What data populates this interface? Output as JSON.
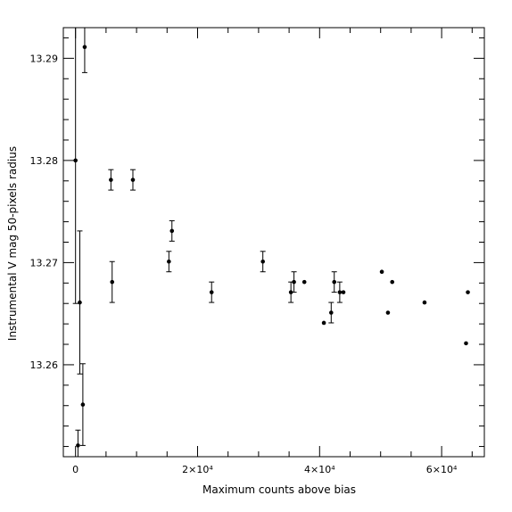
{
  "chart_data": {
    "type": "scatter",
    "title": "",
    "xlabel": "Maximum counts above bias",
    "ylabel": "Instrumental V mag 50-pixels radius",
    "xlim": [
      -2000,
      67000
    ],
    "ylim": [
      13.251,
      13.293
    ],
    "x_major_ticks": [
      0,
      20000,
      40000,
      60000
    ],
    "x_tick_labels": [
      "0",
      "2×10⁴",
      "4×10⁴",
      "6×10⁴"
    ],
    "y_major_ticks": [
      13.26,
      13.27,
      13.28,
      13.29
    ],
    "y_tick_labels": [
      "13.26",
      "13.27",
      "13.28",
      "13.29"
    ],
    "grid": false,
    "error_bars": true,
    "points": [
      {
        "x": 0,
        "y": 13.28,
        "err": 0.014
      },
      {
        "x": 400,
        "y": 13.2521,
        "err": 0.0015
      },
      {
        "x": 700,
        "y": 13.2661,
        "err": 0.007
      },
      {
        "x": 1200,
        "y": 13.2561,
        "err": 0.004
      },
      {
        "x": 1500,
        "y": 13.2911,
        "err": 0.0025
      },
      {
        "x": 5800,
        "y": 13.2781,
        "err": 0.001
      },
      {
        "x": 6000,
        "y": 13.2681,
        "err": 0.002
      },
      {
        "x": 9400,
        "y": 13.2781,
        "err": 0.001
      },
      {
        "x": 15300,
        "y": 13.2701,
        "err": 0.001
      },
      {
        "x": 15800,
        "y": 13.2731,
        "err": 0.001
      },
      {
        "x": 22300,
        "y": 13.2671,
        "err": 0.001
      },
      {
        "x": 30700,
        "y": 13.2701,
        "err": 0.001
      },
      {
        "x": 35300,
        "y": 13.2671,
        "err": 0.001
      },
      {
        "x": 35800,
        "y": 13.2681,
        "err": 0.001
      },
      {
        "x": 37500,
        "y": 13.2681,
        "err": 0.0001
      },
      {
        "x": 40700,
        "y": 13.2641,
        "err": 0.0001
      },
      {
        "x": 41900,
        "y": 13.2651,
        "err": 0.001
      },
      {
        "x": 42400,
        "y": 13.2681,
        "err": 0.001
      },
      {
        "x": 43300,
        "y": 13.2671,
        "err": 0.001
      },
      {
        "x": 43900,
        "y": 13.2671,
        "err": 0.0001
      },
      {
        "x": 50200,
        "y": 13.2691,
        "err": 0.0001
      },
      {
        "x": 51200,
        "y": 13.2651,
        "err": 0.0001
      },
      {
        "x": 51900,
        "y": 13.2681,
        "err": 0.0001
      },
      {
        "x": 57200,
        "y": 13.2661,
        "err": 0.0001
      },
      {
        "x": 64000,
        "y": 13.2621,
        "err": 0.0001
      },
      {
        "x": 64300,
        "y": 13.2671,
        "err": 0.0001
      }
    ]
  }
}
